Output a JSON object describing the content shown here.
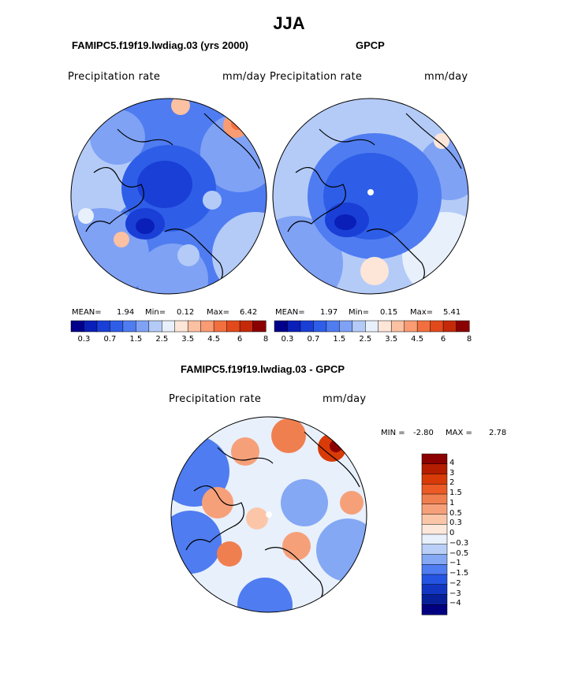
{
  "title": "JJA",
  "panels": [
    {
      "subtitle": "FAMIPC5.f19f19.lwdiag.03 (yrs 2000)",
      "label": "Precipitation rate",
      "units": "mm/day",
      "stats": {
        "mean_label": "MEAN=",
        "mean": "1.94",
        "min_label": "Min=",
        "min": "0.12",
        "max_label": "Max=",
        "max": "6.42"
      }
    },
    {
      "subtitle": "GPCP",
      "label": "Precipitation rate",
      "units": "mm/day",
      "stats": {
        "mean_label": "MEAN=",
        "mean": "1.97",
        "min_label": "Min=",
        "min": "0.15",
        "max_label": "Max=",
        "max": "5.41"
      }
    }
  ],
  "diff_panel": {
    "subtitle": "FAMIPC5.f19f19.lwdiag.03 - GPCP",
    "label": "Precipitation rate",
    "units": "mm/day",
    "stats": {
      "min_label": "MIN =",
      "min": "-2.80",
      "max_label": "MAX =",
      "max": "2.78"
    }
  },
  "colorbar_levels": [
    "0.3",
    "0.7",
    "1.5",
    "2.5",
    "3.5",
    "4.5",
    "6",
    "8"
  ],
  "colorbar_colors": [
    "#00008b",
    "#0a1fb8",
    "#1a3fd6",
    "#2e5ee8",
    "#4f7cf0",
    "#7fa2f5",
    "#b4cbf8",
    "#e8f0fc",
    "#fde6d8",
    "#fcc0a2",
    "#f99b73",
    "#f2703f",
    "#e24a1c",
    "#c42a0a",
    "#8b0000"
  ],
  "diff_levels": [
    "4",
    "3",
    "2",
    "1.5",
    "1",
    "0.5",
    "0.3",
    "0",
    "−0.3",
    "−0.5",
    "−1",
    "−1.5",
    "−2",
    "−3",
    "−4"
  ],
  "diff_colors": [
    "#8b0000",
    "#b51d00",
    "#d83a08",
    "#ec5a26",
    "#f07f50",
    "#f6a07a",
    "#fbc6a8",
    "#fde7da",
    "#e8f0fc",
    "#b9cff7",
    "#84a8f4",
    "#4f7cf0",
    "#2554e2",
    "#1236c2",
    "#07209a",
    "#000080"
  ],
  "chart_data": {
    "type": "heatmap",
    "title": "JJA",
    "variable": "Precipitation rate",
    "units": "mm/day",
    "projection": "north polar stereographic",
    "maps": [
      {
        "name": "FAMIPC5.f19f19.lwdiag.03 (yrs 2000)",
        "mean": 1.94,
        "min": 0.12,
        "max": 6.42,
        "levels": [
          0.3,
          0.7,
          1.5,
          2.5,
          3.5,
          4.5,
          6,
          8
        ]
      },
      {
        "name": "GPCP",
        "mean": 1.97,
        "min": 0.15,
        "max": 5.41,
        "levels": [
          0.3,
          0.7,
          1.5,
          2.5,
          3.5,
          4.5,
          6,
          8
        ]
      },
      {
        "name": "FAMIPC5.f19f19.lwdiag.03 - GPCP",
        "min": -2.8,
        "max": 2.78,
        "levels": [
          -4,
          -3,
          -2,
          -1.5,
          -1,
          -0.5,
          -0.3,
          0,
          0.3,
          0.5,
          1,
          1.5,
          2,
          3,
          4
        ]
      }
    ]
  }
}
